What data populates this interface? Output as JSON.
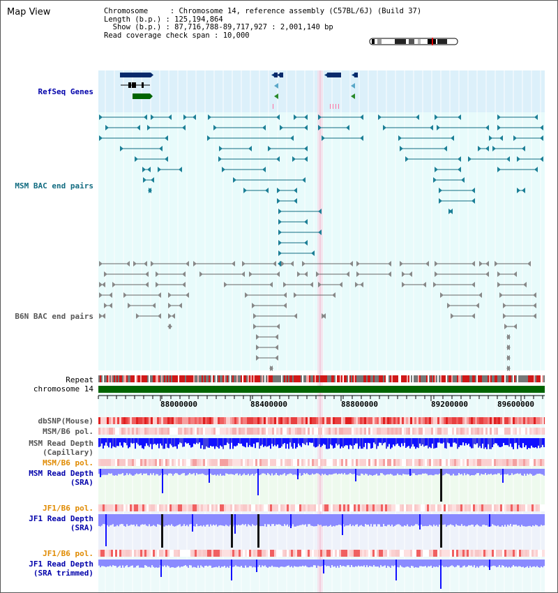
{
  "map_title": "Map View",
  "info": {
    "chromosome_label": "Chromosome     : ",
    "chromosome_value": "Chromosome 14, reference assembly (C57BL/6J) (Build 37)",
    "length_label": "Length (b.p.) : ",
    "length_value": "125,194,864",
    "show_label": "  Show (b.p.) : ",
    "show_value": "87,716,788-89,717,927 : 2,001,140 bp",
    "coverage_label": "Read coverage check span : ",
    "coverage_value": "10,000"
  },
  "tracks": {
    "refseq": "RefSeq Genes",
    "msm_bac": "MSM BAC end pairs",
    "b6n_bac": "B6N BAC end pairs",
    "repeat": "Repeat",
    "chromosome": "chromosome 14",
    "dbsnp": "dbSNP(Mouse)",
    "msm_b6_pol_1": "MSM/B6 pol.",
    "msm_depth_cap_1": "MSM Read Depth",
    "msm_depth_cap_2": "(Capillary)",
    "msm_b6_pol_2": "MSM/B6 pol.",
    "msm_depth_sra_1": "MSM Read Depth",
    "msm_depth_sra_2": "(SRA)",
    "jf1_b6_pol_1": "JF1/B6 pol.",
    "jf1_depth_sra_1": "JF1 Read Depth",
    "jf1_depth_sra_2": "(SRA)",
    "jf1_b6_pol_2": "JF1/B6 pol.",
    "jf1_depth_trim_1": "JF1 Read Depth",
    "jf1_depth_trim_2": "(SRA trimmed)"
  },
  "axis_ticks": [
    "88000000",
    "88400000",
    "88800000",
    "89200000",
    "89600000"
  ],
  "colors": {
    "refseq_bg": "#dceef8",
    "bac_bg": "#e6fafa",
    "lower_bg": "#e9fafa",
    "msm_blue": "#0000aa",
    "orange": "#e08a00",
    "teal": "#116b80",
    "gray_track": "#666666",
    "chrom_green": "#006400",
    "depth_blue": "#1010ff",
    "depth_light": "#8a8aff"
  }
}
